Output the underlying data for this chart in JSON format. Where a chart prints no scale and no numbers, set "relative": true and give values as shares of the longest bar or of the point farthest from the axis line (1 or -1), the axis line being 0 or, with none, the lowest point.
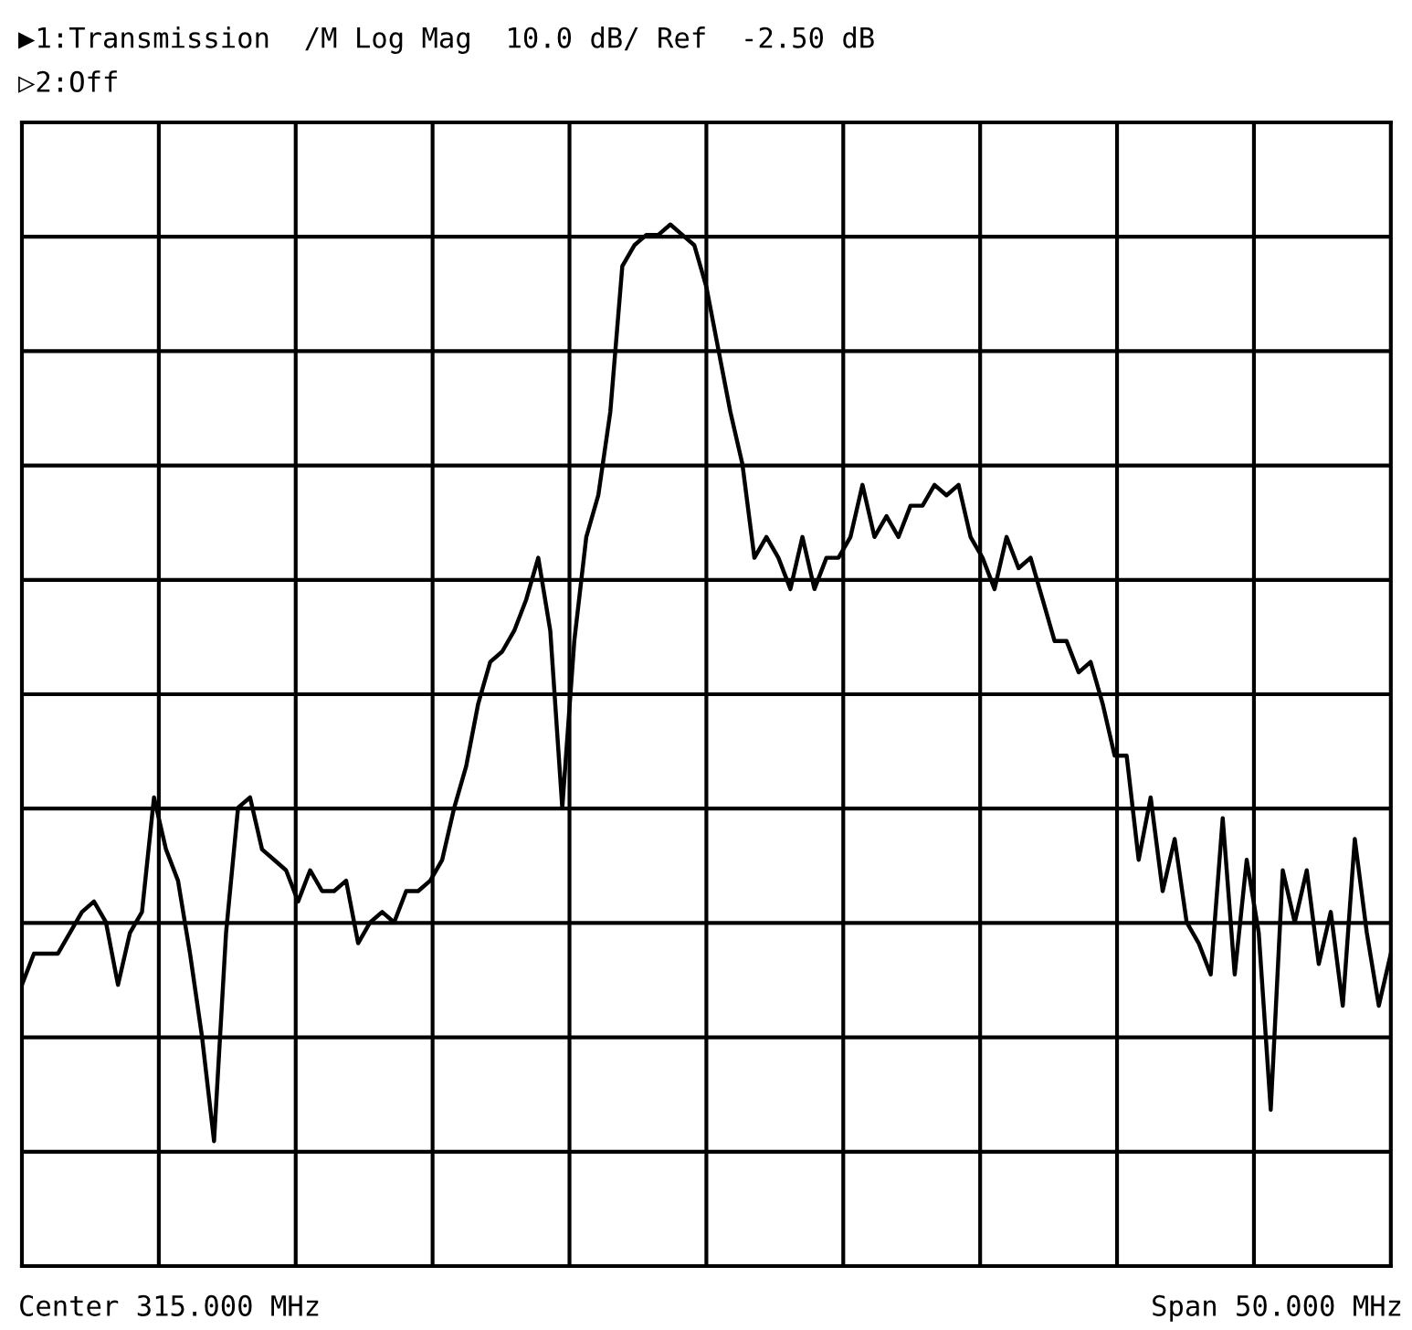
{
  "chart_data": {
    "type": "line",
    "title": "▶1:Transmission  /M Log Mag  10.0 dB/ Ref  -2.50 dB",
    "subtitle": "▷2:Off",
    "annotations": [
      "Center 315.000 MHz",
      "Span 50.000 MHz"
    ],
    "relative": true,
    "categories": [
      null,
      null,
      null,
      null,
      null,
      null,
      null,
      null,
      null,
      null,
      null,
      null,
      null,
      null,
      null,
      null,
      null,
      null,
      null,
      null,
      null,
      null,
      null,
      null,
      null,
      null,
      null,
      null,
      null,
      null,
      null,
      null,
      null,
      null,
      null,
      null,
      null,
      null,
      null,
      null,
      null,
      null,
      null,
      null,
      null,
      null,
      null,
      null,
      null,
      null,
      null,
      null,
      null,
      null,
      null,
      null,
      null,
      null,
      null,
      null,
      null,
      null,
      null,
      null,
      null,
      null,
      null,
      null,
      null,
      null,
      null,
      null,
      null,
      null,
      null,
      null,
      null,
      null,
      null,
      null,
      null,
      null,
      null,
      null,
      null,
      null,
      null,
      null,
      null,
      null,
      null,
      null,
      null,
      null,
      null,
      null,
      null,
      null,
      null,
      null,
      null,
      null,
      null,
      null,
      null,
      null,
      null,
      null,
      null,
      null,
      null,
      null,
      null,
      null,
      null
    ],
    "grid": true,
    "series": [
      {
        "color": "#000000",
        "values": [
          0.27,
          0.3,
          0.3,
          0.3,
          0.32,
          0.34,
          0.35,
          0.33,
          0.27,
          0.32,
          0.34,
          0.45,
          0.4,
          0.37,
          0.3,
          0.22,
          0.12,
          0.32,
          0.44,
          0.45,
          0.4,
          0.39,
          0.38,
          0.35,
          0.38,
          0.36,
          0.36,
          0.37,
          0.31,
          0.33,
          0.34,
          0.33,
          0.36,
          0.36,
          0.37,
          0.39,
          0.44,
          0.48,
          0.54,
          0.58,
          0.59,
          0.61,
          0.64,
          0.68,
          0.61,
          0.44,
          0.6,
          0.7,
          0.74,
          0.82,
          0.96,
          0.98,
          0.99,
          0.99,
          1.0,
          0.99,
          0.98,
          0.94,
          0.88,
          0.82,
          0.77,
          0.68,
          0.7,
          0.68,
          0.65,
          0.7,
          0.65,
          0.68,
          0.68,
          0.7,
          0.75,
          0.7,
          0.72,
          0.7,
          0.73,
          0.73,
          0.75,
          0.74,
          0.75,
          0.7,
          0.68,
          0.65,
          0.7,
          0.67,
          0.68,
          0.64,
          0.6,
          0.6,
          0.57,
          0.58,
          0.54,
          0.49,
          0.49,
          0.39,
          0.45,
          0.36,
          0.41,
          0.33,
          0.31,
          0.28,
          0.43,
          0.28,
          0.39,
          0.32,
          0.15,
          0.38,
          0.33,
          0.38,
          0.29,
          0.34,
          0.25,
          0.41,
          0.32,
          0.25,
          0.3
        ]
      }
    ]
  }
}
